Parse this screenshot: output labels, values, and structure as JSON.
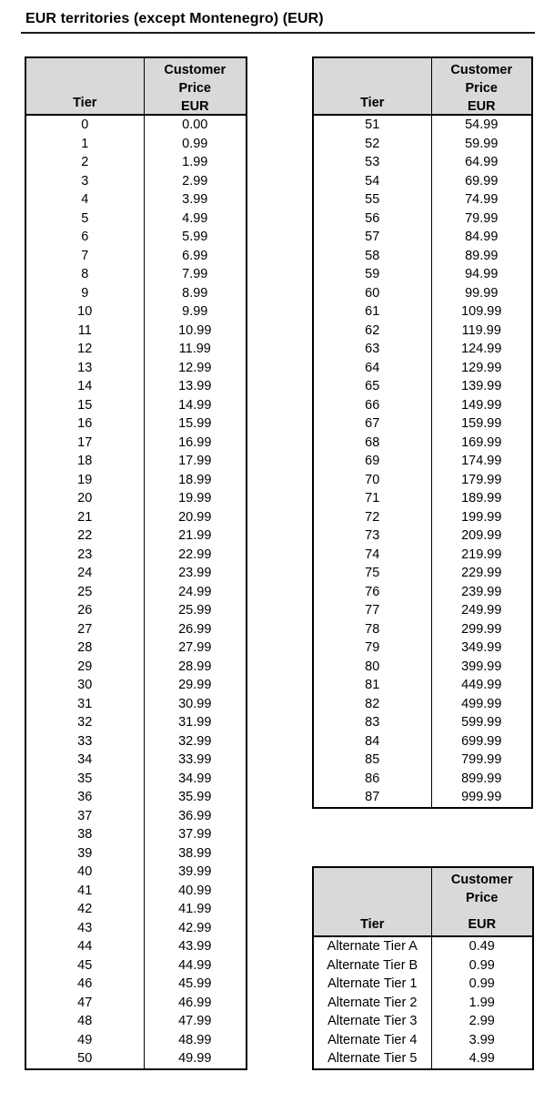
{
  "title": "EUR territories (except Montenegro) (EUR)",
  "colors": {
    "header_bg": "#d9d9d9",
    "ink": "#000000"
  },
  "header": {
    "tier": "Tier",
    "customer": "Customer",
    "price": "Price",
    "eur": "EUR"
  },
  "tables": [
    {
      "name": "tier-table-0-50",
      "rows": [
        [
          "0",
          "0.00"
        ],
        [
          "1",
          "0.99"
        ],
        [
          "2",
          "1.99"
        ],
        [
          "3",
          "2.99"
        ],
        [
          "4",
          "3.99"
        ],
        [
          "5",
          "4.99"
        ],
        [
          "6",
          "5.99"
        ],
        [
          "7",
          "6.99"
        ],
        [
          "8",
          "7.99"
        ],
        [
          "9",
          "8.99"
        ],
        [
          "10",
          "9.99"
        ],
        [
          "11",
          "10.99"
        ],
        [
          "12",
          "11.99"
        ],
        [
          "13",
          "12.99"
        ],
        [
          "14",
          "13.99"
        ],
        [
          "15",
          "14.99"
        ],
        [
          "16",
          "15.99"
        ],
        [
          "17",
          "16.99"
        ],
        [
          "18",
          "17.99"
        ],
        [
          "19",
          "18.99"
        ],
        [
          "20",
          "19.99"
        ],
        [
          "21",
          "20.99"
        ],
        [
          "22",
          "21.99"
        ],
        [
          "23",
          "22.99"
        ],
        [
          "24",
          "23.99"
        ],
        [
          "25",
          "24.99"
        ],
        [
          "26",
          "25.99"
        ],
        [
          "27",
          "26.99"
        ],
        [
          "28",
          "27.99"
        ],
        [
          "29",
          "28.99"
        ],
        [
          "30",
          "29.99"
        ],
        [
          "31",
          "30.99"
        ],
        [
          "32",
          "31.99"
        ],
        [
          "33",
          "32.99"
        ],
        [
          "34",
          "33.99"
        ],
        [
          "35",
          "34.99"
        ],
        [
          "36",
          "35.99"
        ],
        [
          "37",
          "36.99"
        ],
        [
          "38",
          "37.99"
        ],
        [
          "39",
          "38.99"
        ],
        [
          "40",
          "39.99"
        ],
        [
          "41",
          "40.99"
        ],
        [
          "42",
          "41.99"
        ],
        [
          "43",
          "42.99"
        ],
        [
          "44",
          "43.99"
        ],
        [
          "45",
          "44.99"
        ],
        [
          "46",
          "45.99"
        ],
        [
          "47",
          "46.99"
        ],
        [
          "48",
          "47.99"
        ],
        [
          "49",
          "48.99"
        ],
        [
          "50",
          "49.99"
        ]
      ]
    },
    {
      "name": "tier-table-51-87",
      "rows": [
        [
          "51",
          "54.99"
        ],
        [
          "52",
          "59.99"
        ],
        [
          "53",
          "64.99"
        ],
        [
          "54",
          "69.99"
        ],
        [
          "55",
          "74.99"
        ],
        [
          "56",
          "79.99"
        ],
        [
          "57",
          "84.99"
        ],
        [
          "58",
          "89.99"
        ],
        [
          "59",
          "94.99"
        ],
        [
          "60",
          "99.99"
        ],
        [
          "61",
          "109.99"
        ],
        [
          "62",
          "119.99"
        ],
        [
          "63",
          "124.99"
        ],
        [
          "64",
          "129.99"
        ],
        [
          "65",
          "139.99"
        ],
        [
          "66",
          "149.99"
        ],
        [
          "67",
          "159.99"
        ],
        [
          "68",
          "169.99"
        ],
        [
          "69",
          "174.99"
        ],
        [
          "70",
          "179.99"
        ],
        [
          "71",
          "189.99"
        ],
        [
          "72",
          "199.99"
        ],
        [
          "73",
          "209.99"
        ],
        [
          "74",
          "219.99"
        ],
        [
          "75",
          "229.99"
        ],
        [
          "76",
          "239.99"
        ],
        [
          "77",
          "249.99"
        ],
        [
          "78",
          "299.99"
        ],
        [
          "79",
          "349.99"
        ],
        [
          "80",
          "399.99"
        ],
        [
          "81",
          "449.99"
        ],
        [
          "82",
          "499.99"
        ],
        [
          "83",
          "599.99"
        ],
        [
          "84",
          "699.99"
        ],
        [
          "85",
          "799.99"
        ],
        [
          "86",
          "899.99"
        ],
        [
          "87",
          "999.99"
        ]
      ]
    },
    {
      "name": "alternate-tier-table",
      "rows": [
        [
          "Alternate Tier A",
          "0.49"
        ],
        [
          "Alternate Tier B",
          "0.99"
        ],
        [
          "Alternate Tier 1",
          "0.99"
        ],
        [
          "Alternate Tier 2",
          "1.99"
        ],
        [
          "Alternate Tier 3",
          "2.99"
        ],
        [
          "Alternate Tier 4",
          "3.99"
        ],
        [
          "Alternate Tier 5",
          "4.99"
        ]
      ]
    }
  ]
}
